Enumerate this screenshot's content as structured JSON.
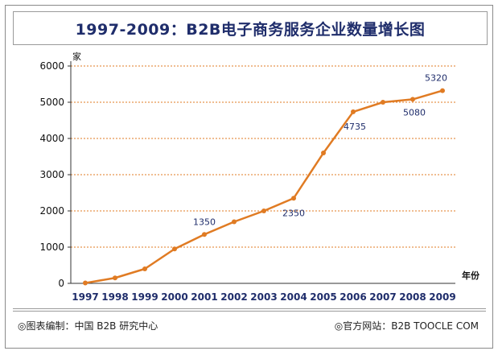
{
  "chart_data": {
    "type": "line",
    "title": "1997-2009：B2B电子商务服务企业数量增长图",
    "ylabel_unit": "家",
    "xlabel_unit": "年份",
    "x": [
      "1997",
      "1998",
      "1999",
      "2000",
      "2001",
      "2002",
      "2003",
      "2004",
      "2005",
      "2006",
      "2007",
      "2008",
      "2009"
    ],
    "values": [
      10,
      150,
      400,
      950,
      1350,
      1700,
      2000,
      2350,
      3600,
      4735,
      5000,
      5080,
      5320
    ],
    "labeled_points": [
      {
        "x": "2001",
        "label": "1350"
      },
      {
        "x": "2004",
        "label": "2350"
      },
      {
        "x": "2006",
        "label": "4735"
      },
      {
        "x": "2008",
        "label": "5080"
      },
      {
        "x": "2009",
        "label": "5320"
      }
    ],
    "ylim": [
      0,
      6000
    ],
    "yticks": [
      0,
      1000,
      2000,
      3000,
      4000,
      5000,
      6000
    ],
    "grid": true,
    "line_color": "#e07b23"
  },
  "footer": {
    "source": "◎图表编制：中国 B2B 研究中心",
    "website": "◎官方网站：B2B TOOCLE COM"
  }
}
